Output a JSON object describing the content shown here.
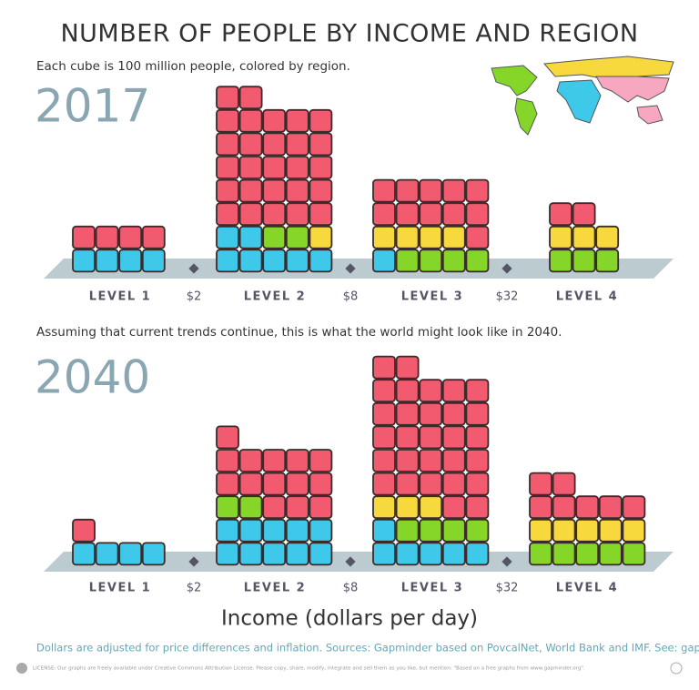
{
  "title": "NUMBER OF PEOPLE BY INCOME AND REGION",
  "chart_data": [
    {
      "type": "cube",
      "title": "2017",
      "subtitle": "Each cube is 100 million people, colored by region.",
      "categories": [
        "LEVEL 1",
        "LEVEL 2",
        "LEVEL 3",
        "LEVEL 4"
      ],
      "thresholds": [
        "$2",
        "$8",
        "$32"
      ],
      "series": [
        {
          "color": "#3ec8ea",
          "values": [
            4,
            7,
            1,
            0
          ]
        },
        {
          "color": "#86d62a",
          "values": [
            0,
            2,
            4,
            3
          ]
        },
        {
          "color": "#f7d93e",
          "values": [
            0,
            1,
            4,
            3
          ]
        },
        {
          "color": "#f25a70",
          "values": [
            4,
            27,
            11,
            2
          ]
        }
      ]
    },
    {
      "type": "cube",
      "title": "2040",
      "subtitle": "Assuming that current trends continue, this is what the world might look like in 2040.",
      "categories": [
        "LEVEL 1",
        "LEVEL 2",
        "LEVEL 3",
        "LEVEL 4"
      ],
      "thresholds": [
        "$2",
        "$8",
        "$32"
      ],
      "series": [
        {
          "color": "#3ec8ea",
          "values": [
            4,
            10,
            6,
            0
          ]
        },
        {
          "color": "#86d62a",
          "values": [
            0,
            2,
            4,
            5
          ]
        },
        {
          "color": "#f7d93e",
          "values": [
            0,
            0,
            3,
            5
          ]
        },
        {
          "color": "#f25a70",
          "values": [
            1,
            14,
            29,
            7
          ]
        }
      ],
      "xlabel": "Income (dollars per day)"
    }
  ],
  "footer": "Dollars are adjusted for price differences and inflation. Sources: Gapminder based on PovcalNet, World Bank and IMF. See: gapm.io/incm",
  "license": "LICENSE: Our graphs are freely available under Creative Commons Attribution License. Please copy, share, modify, integrate and sell them as you like, but mention: \"Based on a free graphs from www.gapminder.org\"."
}
